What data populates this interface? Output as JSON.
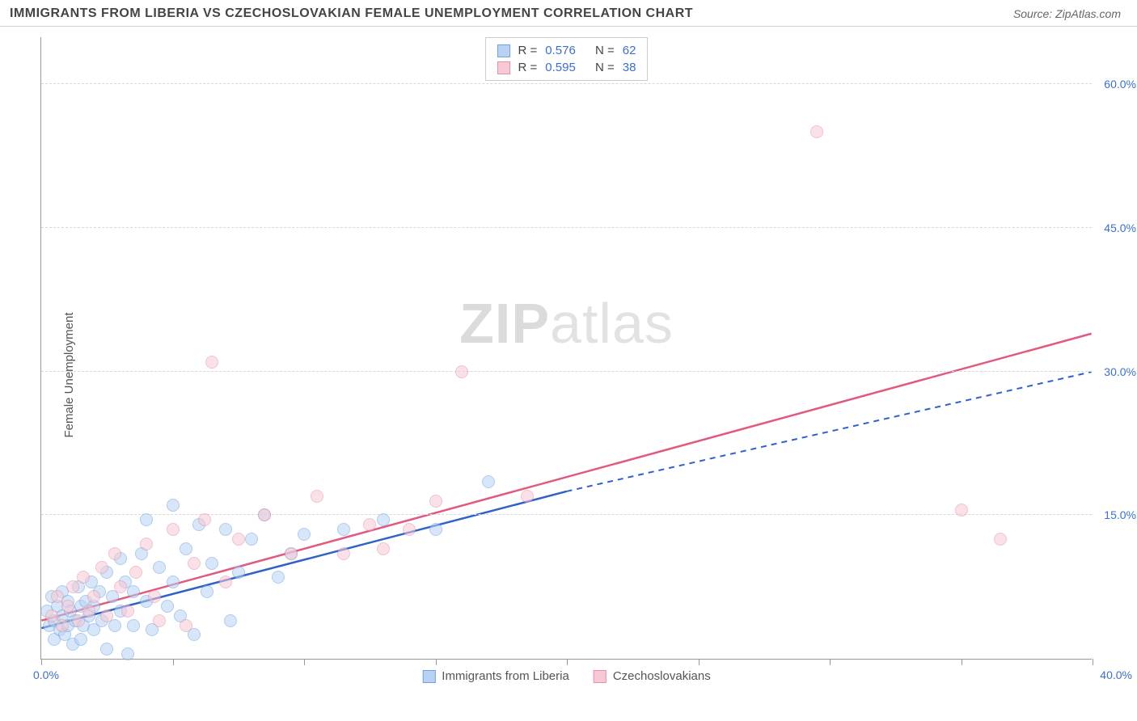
{
  "header": {
    "title": "IMMIGRANTS FROM LIBERIA VS CZECHOSLOVAKIAN FEMALE UNEMPLOYMENT CORRELATION CHART",
    "source_prefix": "Source: ",
    "source": "ZipAtlas.com"
  },
  "watermark": {
    "bold": "ZIP",
    "light": "atlas"
  },
  "chart": {
    "type": "scatter",
    "y_label": "Female Unemployment",
    "xlim": [
      0,
      40
    ],
    "ylim": [
      0,
      65
    ],
    "x_min_label": "0.0%",
    "x_max_label": "40.0%",
    "x_ticks": [
      0,
      5,
      10,
      15,
      20,
      25,
      30,
      35,
      40
    ],
    "y_ticks": [
      {
        "v": 15,
        "label": "15.0%"
      },
      {
        "v": 30,
        "label": "30.0%"
      },
      {
        "v": 45,
        "label": "45.0%"
      },
      {
        "v": 60,
        "label": "60.0%"
      }
    ],
    "grid_color": "#d8d8d8",
    "background_color": "#ffffff",
    "point_radius": 8,
    "point_opacity": 0.55,
    "series": [
      {
        "name": "Immigrants from Liberia",
        "color_fill": "#b7d2f3",
        "color_stroke": "#6fa3e0",
        "line_color": "#2f62c9",
        "regression": {
          "x1": 0,
          "y1": 3.2,
          "x2_solid": 20,
          "y2_solid": 17.5,
          "x2": 40,
          "y2": 30.0,
          "dashed_from": 20
        },
        "R": 0.576,
        "N": 62,
        "points": [
          [
            0.2,
            5.0
          ],
          [
            0.3,
            3.5
          ],
          [
            0.4,
            6.5
          ],
          [
            0.5,
            4.0
          ],
          [
            0.5,
            2.0
          ],
          [
            0.6,
            5.5
          ],
          [
            0.7,
            3.0
          ],
          [
            0.8,
            7.0
          ],
          [
            0.8,
            4.5
          ],
          [
            0.9,
            2.5
          ],
          [
            1.0,
            6.0
          ],
          [
            1.0,
            3.5
          ],
          [
            1.1,
            5.0
          ],
          [
            1.2,
            1.5
          ],
          [
            1.3,
            4.0
          ],
          [
            1.4,
            7.5
          ],
          [
            1.5,
            5.5
          ],
          [
            1.5,
            2.0
          ],
          [
            1.6,
            3.5
          ],
          [
            1.7,
            6.0
          ],
          [
            1.8,
            4.5
          ],
          [
            1.9,
            8.0
          ],
          [
            2.0,
            3.0
          ],
          [
            2.0,
            5.5
          ],
          [
            2.2,
            7.0
          ],
          [
            2.3,
            4.0
          ],
          [
            2.5,
            9.0
          ],
          [
            2.5,
            1.0
          ],
          [
            2.7,
            6.5
          ],
          [
            2.8,
            3.5
          ],
          [
            3.0,
            10.5
          ],
          [
            3.0,
            5.0
          ],
          [
            3.2,
            8.0
          ],
          [
            3.3,
            0.5
          ],
          [
            3.5,
            7.0
          ],
          [
            3.5,
            3.5
          ],
          [
            3.8,
            11.0
          ],
          [
            4.0,
            14.5
          ],
          [
            4.0,
            6.0
          ],
          [
            4.2,
            3.0
          ],
          [
            4.5,
            9.5
          ],
          [
            4.8,
            5.5
          ],
          [
            5.0,
            16.0
          ],
          [
            5.0,
            8.0
          ],
          [
            5.3,
            4.5
          ],
          [
            5.5,
            11.5
          ],
          [
            5.8,
            2.5
          ],
          [
            6.0,
            14.0
          ],
          [
            6.3,
            7.0
          ],
          [
            6.5,
            10.0
          ],
          [
            7.0,
            13.5
          ],
          [
            7.2,
            4.0
          ],
          [
            7.5,
            9.0
          ],
          [
            8.0,
            12.5
          ],
          [
            8.5,
            15.0
          ],
          [
            9.0,
            8.5
          ],
          [
            9.5,
            11.0
          ],
          [
            10.0,
            13.0
          ],
          [
            11.5,
            13.5
          ],
          [
            13.0,
            14.5
          ],
          [
            15.0,
            13.5
          ],
          [
            17.0,
            18.5
          ]
        ]
      },
      {
        "name": "Czechoslovakians",
        "color_fill": "#f6c9d4",
        "color_stroke": "#e98fa8",
        "line_color": "#e15a7e",
        "regression": {
          "x1": 0,
          "y1": 4.0,
          "x2_solid": 40,
          "y2_solid": 34.0,
          "x2": 40,
          "y2": 34.0,
          "dashed_from": 40
        },
        "R": 0.595,
        "N": 38,
        "points": [
          [
            0.4,
            4.5
          ],
          [
            0.6,
            6.5
          ],
          [
            0.8,
            3.5
          ],
          [
            1.0,
            5.5
          ],
          [
            1.2,
            7.5
          ],
          [
            1.4,
            4.0
          ],
          [
            1.6,
            8.5
          ],
          [
            1.8,
            5.0
          ],
          [
            2.0,
            6.5
          ],
          [
            2.3,
            9.5
          ],
          [
            2.5,
            4.5
          ],
          [
            2.8,
            11.0
          ],
          [
            3.0,
            7.5
          ],
          [
            3.3,
            5.0
          ],
          [
            3.6,
            9.0
          ],
          [
            4.0,
            12.0
          ],
          [
            4.3,
            6.5
          ],
          [
            4.5,
            4.0
          ],
          [
            5.0,
            13.5
          ],
          [
            5.5,
            3.5
          ],
          [
            5.8,
            10.0
          ],
          [
            6.2,
            14.5
          ],
          [
            6.5,
            31.0
          ],
          [
            7.0,
            8.0
          ],
          [
            7.5,
            12.5
          ],
          [
            8.5,
            15.0
          ],
          [
            9.5,
            11.0
          ],
          [
            10.5,
            17.0
          ],
          [
            11.5,
            11.0
          ],
          [
            12.5,
            14.0
          ],
          [
            13.0,
            11.5
          ],
          [
            14.0,
            13.5
          ],
          [
            15.0,
            16.5
          ],
          [
            16.0,
            30.0
          ],
          [
            18.5,
            17.0
          ],
          [
            29.5,
            55.0
          ],
          [
            35.0,
            15.5
          ],
          [
            36.5,
            12.5
          ]
        ]
      }
    ]
  },
  "stats_box": {
    "rows": [
      {
        "swatch_fill": "#b7d2f3",
        "swatch_stroke": "#6fa3e0",
        "R_label": "R =",
        "R": "0.576",
        "N_label": "N =",
        "N": "62"
      },
      {
        "swatch_fill": "#f6c9d4",
        "swatch_stroke": "#e98fa8",
        "R_label": "R =",
        "R": "0.595",
        "N_label": "N =",
        "N": "38"
      }
    ]
  },
  "legend": {
    "items": [
      {
        "swatch_fill": "#b7d2f3",
        "swatch_stroke": "#6fa3e0",
        "label": "Immigrants from Liberia"
      },
      {
        "swatch_fill": "#f6c9d4",
        "swatch_stroke": "#e98fa8",
        "label": "Czechoslovakians"
      }
    ]
  }
}
